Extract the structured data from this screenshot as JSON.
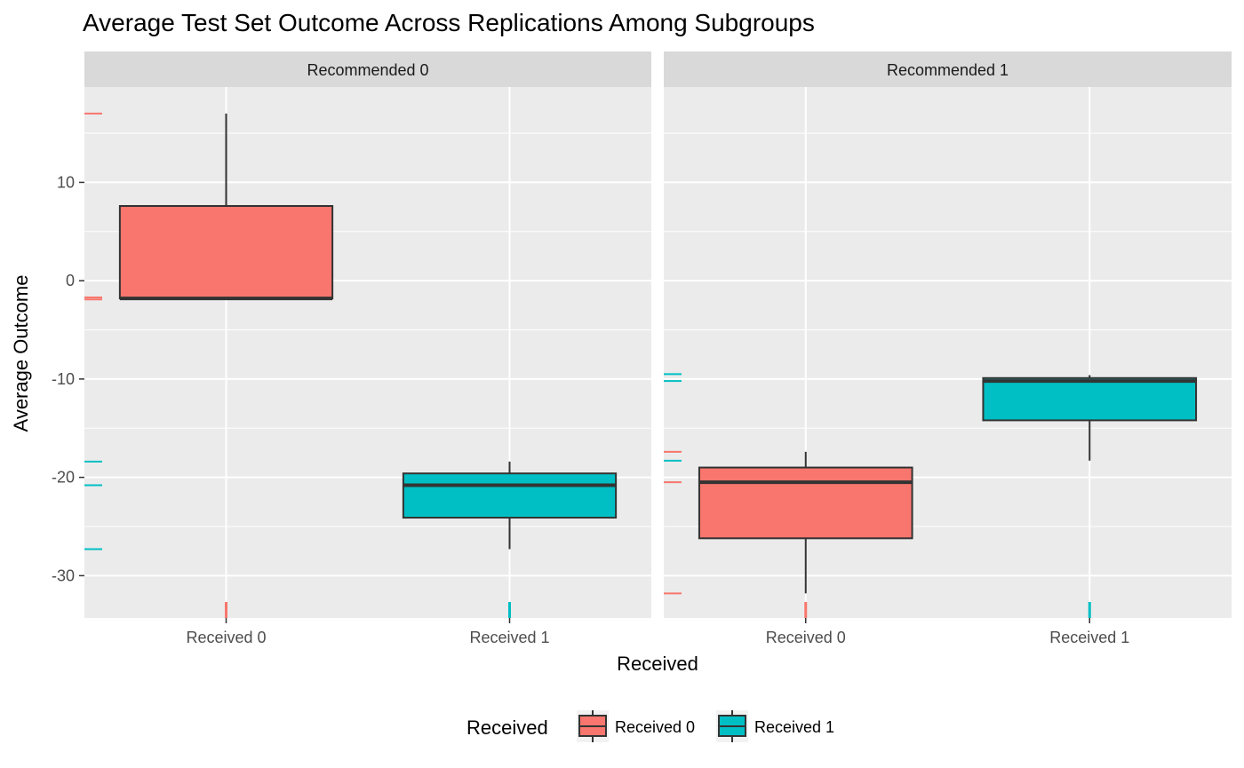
{
  "chart_data": {
    "type": "box",
    "title": "Average Test Set Outcome Across Replications Among Subgroups",
    "xlabel": "Received",
    "ylabel": "Average Outcome",
    "ylim": [
      -34.3,
      19.7
    ],
    "yticks": [
      10,
      0,
      -10,
      -20,
      -30
    ],
    "ytick_labels": [
      "10",
      "0",
      "-10",
      "-20",
      "-30"
    ],
    "categories": [
      "Received 0",
      "Received 1"
    ],
    "grid": true,
    "legend": {
      "title": "Received",
      "position": "bottom",
      "entries": [
        {
          "label": "Received 0",
          "color": "#F8766D"
        },
        {
          "label": "Received 1",
          "color": "#00BFC4"
        }
      ]
    },
    "panels": [
      {
        "label": "Recommended 0",
        "boxes": [
          {
            "category": "Received 0",
            "color": "#F8766D",
            "min": -1.8,
            "q1": -1.8,
            "median": -1.8,
            "q3": 7.6,
            "max": 17.0
          },
          {
            "category": "Received 1",
            "color": "#00BFC4",
            "min": -27.3,
            "q1": -24.1,
            "median": -20.8,
            "q3": -19.6,
            "max": -18.4
          }
        ],
        "rug_y": [
          {
            "value": 17.0,
            "color": "#F8766D"
          },
          {
            "value": -1.7,
            "color": "#F8766D"
          },
          {
            "value": -1.9,
            "color": "#F8766D"
          },
          {
            "value": -18.4,
            "color": "#00BFC4"
          },
          {
            "value": -20.8,
            "color": "#00BFC4"
          },
          {
            "value": -27.3,
            "color": "#00BFC4"
          }
        ]
      },
      {
        "label": "Recommended 1",
        "boxes": [
          {
            "category": "Received 0",
            "color": "#F8766D",
            "min": -31.8,
            "q1": -26.2,
            "median": -20.5,
            "q3": -19.0,
            "max": -17.4
          },
          {
            "category": "Received 1",
            "color": "#00BFC4",
            "min": -18.3,
            "q1": -14.2,
            "median": -10.2,
            "q3": -9.9,
            "max": -9.6
          }
        ],
        "rug_y": [
          {
            "value": -9.5,
            "color": "#00BFC4"
          },
          {
            "value": -10.2,
            "color": "#00BFC4"
          },
          {
            "value": -17.4,
            "color": "#F8766D"
          },
          {
            "value": -18.3,
            "color": "#00BFC4"
          },
          {
            "value": -20.5,
            "color": "#F8766D"
          },
          {
            "value": -31.8,
            "color": "#F8766D"
          }
        ]
      }
    ]
  }
}
